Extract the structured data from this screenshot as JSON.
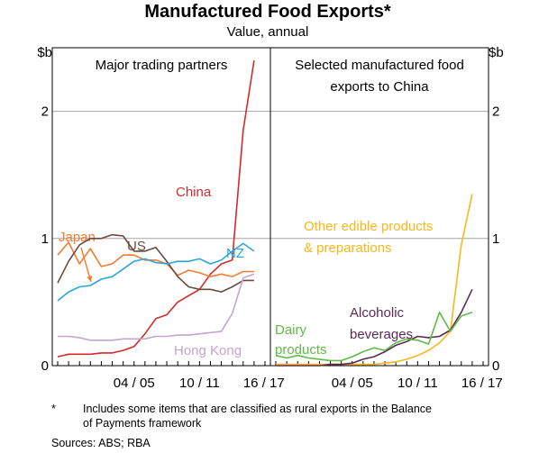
{
  "title": "Manufactured Food Exports*",
  "subtitle": "Value, annual",
  "y_unit_left": "$b",
  "y_unit_right": "$b",
  "footnote_marker": "*",
  "footnote_text_line1": "Includes some items that are classified as rural exports in the Balance",
  "footnote_text_line2": "of Payments framework",
  "sources": "Sources:   ABS; RBA",
  "colors": {
    "China": "#d42a2a",
    "Japan": "#f37c32",
    "US": "#6b4a3d",
    "NZ": "#2aa7db",
    "Hong Kong": "#c3a5cf",
    "Other edible products & preparations": "#f6b81c",
    "Alcoholic beverages": "#5b2a57",
    "Dairy products": "#5fbb46"
  },
  "chart_data": [
    {
      "type": "line",
      "panel_title": "Major trading partners",
      "x": [
        1998,
        1999,
        2000,
        2001,
        2002,
        2003,
        2004,
        2005,
        2006,
        2007,
        2008,
        2009,
        2010,
        2011,
        2012,
        2013,
        2014,
        2015,
        2016,
        2017
      ],
      "xtick_labels": [
        "04 / 05",
        "10 / 11",
        "16 / 17"
      ],
      "ylim": [
        0,
        2.5
      ],
      "yticks": [
        0,
        1,
        2
      ],
      "grid": true,
      "series": [
        {
          "name": "China",
          "label_lines": [
            "China"
          ],
          "values": [
            0.07,
            0.09,
            0.09,
            0.09,
            0.1,
            0.1,
            0.12,
            0.15,
            0.25,
            0.37,
            0.4,
            0.5,
            0.55,
            0.6,
            0.72,
            0.8,
            0.83,
            1.85,
            2.4,
            null
          ]
        },
        {
          "name": "Japan",
          "label_lines": [
            "Japan"
          ],
          "values": [
            0.87,
            0.97,
            0.8,
            0.92,
            0.78,
            0.8,
            0.87,
            0.87,
            0.83,
            0.83,
            0.8,
            0.71,
            0.75,
            0.73,
            0.7,
            0.72,
            0.7,
            0.74,
            0.74,
            null
          ]
        },
        {
          "name": "US",
          "label_lines": [
            "US"
          ],
          "values": [
            0.65,
            0.82,
            0.95,
            1.0,
            1.0,
            1.03,
            1.02,
            0.9,
            0.9,
            0.93,
            0.82,
            0.7,
            0.62,
            0.6,
            0.6,
            0.58,
            0.62,
            0.67,
            0.67,
            null
          ]
        },
        {
          "name": "NZ",
          "label_lines": [
            "NZ"
          ],
          "values": [
            0.51,
            0.58,
            0.62,
            0.63,
            0.68,
            0.7,
            0.76,
            0.82,
            0.84,
            0.81,
            0.8,
            0.82,
            0.82,
            0.84,
            0.8,
            0.83,
            0.9,
            0.96,
            0.9,
            null
          ]
        },
        {
          "name": "Hong Kong",
          "label_lines": [
            "Hong Kong"
          ],
          "values": [
            0.23,
            0.23,
            0.22,
            0.2,
            0.2,
            0.2,
            0.21,
            0.21,
            0.21,
            0.23,
            0.23,
            0.24,
            0.24,
            0.25,
            0.26,
            0.27,
            0.41,
            0.69,
            0.72,
            null
          ]
        }
      ]
    },
    {
      "type": "line",
      "panel_title_lines": [
        "Selected manufactured food",
        "exports to China"
      ],
      "x": [
        1998,
        1999,
        2000,
        2001,
        2002,
        2003,
        2004,
        2005,
        2006,
        2007,
        2008,
        2009,
        2010,
        2011,
        2012,
        2013,
        2014,
        2015,
        2016,
        2017
      ],
      "xtick_labels": [
        "04 / 05",
        "10 / 11",
        "16 / 17"
      ],
      "ylim": [
        0,
        2.5
      ],
      "yticks": [
        0,
        1,
        2
      ],
      "grid": true,
      "series": [
        {
          "name": "Other edible products & preparations",
          "label_lines": [
            "Other edible products",
            "& preparations"
          ],
          "values": [
            0.01,
            0.01,
            0.01,
            0.01,
            0.01,
            0.01,
            0.01,
            0.01,
            0.01,
            0.01,
            0.02,
            0.03,
            0.05,
            0.08,
            0.12,
            0.18,
            0.27,
            0.95,
            1.35,
            null
          ]
        },
        {
          "name": "Alcoholic beverages",
          "label_lines": [
            "Alcoholic",
            "beverages"
          ],
          "values": [
            0.0,
            0.0,
            0.0,
            0.0,
            0.0,
            0.01,
            0.01,
            0.02,
            0.05,
            0.07,
            0.11,
            0.16,
            0.19,
            0.23,
            0.22,
            0.23,
            0.28,
            0.42,
            0.6,
            null
          ]
        },
        {
          "name": "Dairy products",
          "label_lines": [
            "Dairy",
            "products"
          ],
          "values": [
            0.08,
            0.06,
            0.08,
            0.06,
            0.05,
            0.04,
            0.04,
            0.07,
            0.11,
            0.14,
            0.12,
            0.18,
            0.21,
            0.2,
            0.17,
            0.42,
            0.27,
            0.39,
            0.42,
            null
          ]
        }
      ]
    }
  ]
}
